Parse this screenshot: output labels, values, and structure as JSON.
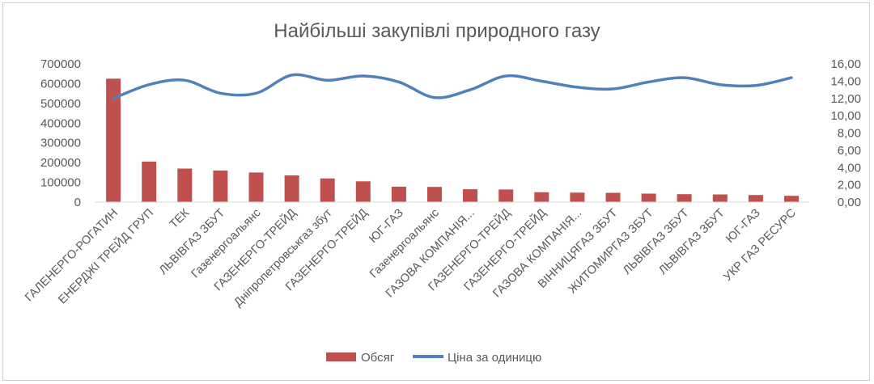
{
  "chart_data": {
    "type": "bar",
    "title": "Найбільші закупівлі природного газу",
    "categories": [
      "ГАЛЕНЕРГО-РОГАТИН",
      "ЕНЕРДЖІ ТРЕЙД ГРУП",
      "ТЕК",
      "ЛЬВІВГАЗ ЗБУТ",
      "Газенергоальянс",
      "ГАЗЕНЕРГО-ТРЕЙД",
      "Дніпропетровськгаз збут",
      "ГАЗЕНЕРГО-ТРЕЙД",
      "ЮГ-ГАЗ",
      "Газенергоальянс",
      "ГАЗОВА КОМПАНІЯ...",
      "ГАЗЕНЕРГО-ТРЕЙД",
      "ГАЗЕНЕРГО-ТРЕЙД",
      "ГАЗОВА КОМПАНІЯ...",
      "ВІННИЦЯГАЗ ЗБУТ",
      "ЖИТОМИРГАЗ ЗБУТ",
      "ЛЬВІВГАЗ ЗБУТ",
      "ЛЬВІВГАЗ ЗБУТ",
      "ЮГ-ГАЗ",
      "УКР ГАЗ РЕСУРС"
    ],
    "series": [
      {
        "name": "Обсяг",
        "type": "bar",
        "axis": "left",
        "color": "#C0504D",
        "values": [
          625000,
          205000,
          170000,
          160000,
          150000,
          135000,
          120000,
          105000,
          78000,
          77000,
          65000,
          64000,
          50000,
          48000,
          47000,
          43000,
          40000,
          39000,
          36000,
          32000
        ]
      },
      {
        "name": "Ціна за одиницю",
        "type": "line",
        "axis": "right",
        "color": "#4F81BD",
        "values": [
          12.0,
          13.6,
          14.1,
          12.6,
          12.6,
          14.7,
          14.1,
          14.6,
          13.9,
          12.1,
          13.0,
          14.6,
          14.0,
          13.3,
          13.1,
          13.9,
          14.4,
          13.6,
          13.5,
          14.4
        ]
      }
    ],
    "y_left": {
      "min": 0,
      "max": 700000,
      "ticks": [
        "0",
        "100000",
        "200000",
        "300000",
        "400000",
        "500000",
        "600000",
        "700000"
      ]
    },
    "y_right": {
      "min": 0,
      "max": 16,
      "ticks": [
        "0,00",
        "2,00",
        "4,00",
        "6,00",
        "8,00",
        "10,00",
        "12,00",
        "14,00",
        "16,00"
      ]
    },
    "grid": false,
    "legend": "bottom"
  }
}
